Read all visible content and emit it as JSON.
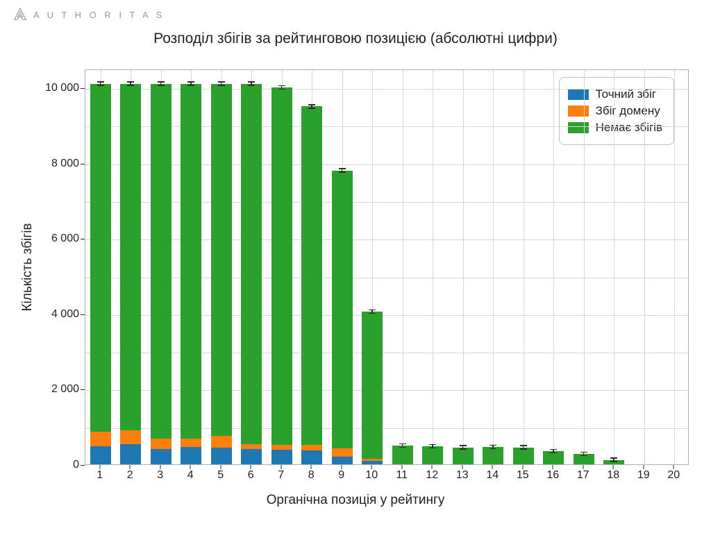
{
  "brand": "A U T H O R I T A S",
  "chart": {
    "type": "stacked-bar",
    "title": "Розподіл збігів за рейтинговою позицією (абсолютні цифри)",
    "title_fontsize": 21,
    "xlabel": "Органічна позиція у рейтингу",
    "ylabel": "Кількість збігів",
    "label_fontsize": 19,
    "tick_fontsize": 16,
    "background_color": "#ffffff",
    "grid_color": "#d8d8d8",
    "axis_color": "#b0b0b0",
    "xlim": [
      0.5,
      20.5
    ],
    "ylim": [
      0,
      10500
    ],
    "ytick_step": 2000,
    "yticks": [
      "0",
      "2 000",
      "4 000",
      "6 000",
      "8 000",
      "10 000"
    ],
    "categories": [
      1,
      2,
      3,
      4,
      5,
      6,
      7,
      8,
      9,
      10,
      11,
      12,
      13,
      14,
      15,
      16,
      17,
      18,
      19,
      20
    ],
    "bar_width": 0.7,
    "error_bar_half": 60,
    "series": [
      {
        "name": "Точний збіг",
        "color": "#1f77b4"
      },
      {
        "name": "Збіг домену",
        "color": "#ff7f0e"
      },
      {
        "name": "Немає збігів",
        "color": "#2ca02c"
      }
    ],
    "legend": {
      "position": "top-right",
      "border_color": "#c0c0c0",
      "border_radius": 8
    },
    "data": [
      {
        "x": 1,
        "exact": 480,
        "domain": 380,
        "none": 9240
      },
      {
        "x": 2,
        "exact": 540,
        "domain": 360,
        "none": 9200
      },
      {
        "x": 3,
        "exact": 400,
        "domain": 280,
        "none": 9420
      },
      {
        "x": 4,
        "exact": 460,
        "domain": 220,
        "none": 9420
      },
      {
        "x": 5,
        "exact": 440,
        "domain": 320,
        "none": 9340
      },
      {
        "x": 6,
        "exact": 400,
        "domain": 140,
        "none": 9560
      },
      {
        "x": 7,
        "exact": 380,
        "domain": 140,
        "none": 9480
      },
      {
        "x": 8,
        "exact": 360,
        "domain": 160,
        "none": 8980
      },
      {
        "x": 9,
        "exact": 210,
        "domain": 220,
        "none": 7370
      },
      {
        "x": 10,
        "exact": 90,
        "domain": 60,
        "none": 3900
      },
      {
        "x": 11,
        "exact": 0,
        "domain": 0,
        "none": 500
      },
      {
        "x": 12,
        "exact": 0,
        "domain": 0,
        "none": 480
      },
      {
        "x": 13,
        "exact": 0,
        "domain": 0,
        "none": 450
      },
      {
        "x": 14,
        "exact": 0,
        "domain": 0,
        "none": 460
      },
      {
        "x": 15,
        "exact": 0,
        "domain": 0,
        "none": 450
      },
      {
        "x": 16,
        "exact": 0,
        "domain": 0,
        "none": 350
      },
      {
        "x": 17,
        "exact": 0,
        "domain": 0,
        "none": 280
      },
      {
        "x": 18,
        "exact": 0,
        "domain": 0,
        "none": 120
      },
      {
        "x": 19,
        "exact": 0,
        "domain": 0,
        "none": 0
      },
      {
        "x": 20,
        "exact": 0,
        "domain": 0,
        "none": 0
      }
    ]
  }
}
